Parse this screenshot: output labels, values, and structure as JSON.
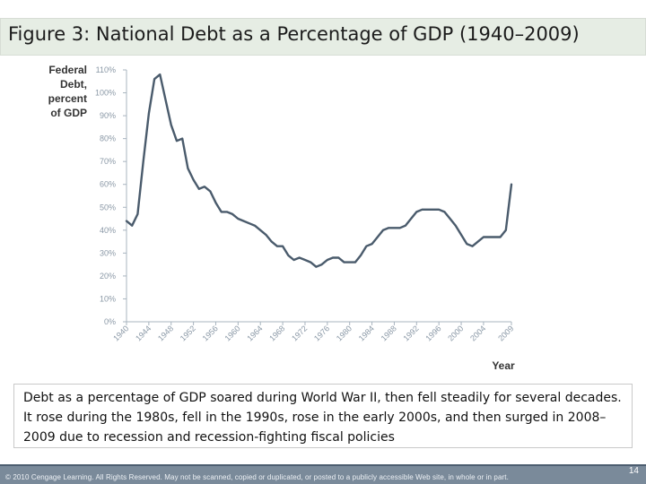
{
  "slide": {
    "title": "Figure 3: National Debt as a Percentage of GDP (1940–2009)",
    "caption": "Debt as a percentage of GDP soared during World War II, then fell steadily for several decades. It rose during the 1980s, fell in the 1990s, rose in the early 2000s, and then surged in 2008–2009 due to recession and recession-fighting fiscal policies",
    "copyright": "© 2010 Cengage Learning. All Rights Reserved. May not be scanned, copied or duplicated, or posted to a publicly accessible Web site, in whole or in part.",
    "page_number": "14"
  },
  "colors": {
    "line": "#4a5b6c",
    "axis": "#a8b4bf",
    "tick_text": "#8a98a6",
    "axis_title": "#333333",
    "footer": "#7a8a9a"
  },
  "chart_data": {
    "type": "line",
    "title": "",
    "ylabel_lines": [
      "Federal",
      "Debt,",
      "percent",
      "of GDP"
    ],
    "xlabel": "Year",
    "xlim": [
      1940,
      2009
    ],
    "ylim": [
      0,
      110
    ],
    "y_ticks": [
      0,
      10,
      20,
      30,
      40,
      50,
      60,
      70,
      80,
      90,
      100,
      110
    ],
    "y_tick_labels": [
      "0%",
      "10%",
      "20%",
      "30%",
      "40%",
      "50%",
      "60%",
      "70%",
      "80%",
      "90%",
      "100%",
      "110%"
    ],
    "x_ticks": [
      1940,
      1944,
      1948,
      1952,
      1956,
      1960,
      1964,
      1968,
      1972,
      1976,
      1980,
      1984,
      1988,
      1992,
      1996,
      2000,
      2004,
      2009
    ],
    "x_tick_labels": [
      "1940",
      "1944",
      "1948",
      "1952",
      "1956",
      "1960",
      "1964",
      "1968",
      "1972",
      "1976",
      "1980",
      "1984",
      "1988",
      "1992",
      "1996",
      "2000",
      "2004",
      "2009"
    ],
    "grid": false,
    "series": [
      {
        "name": "Federal Debt, percent of GDP",
        "x": [
          1940,
          1941,
          1942,
          1943,
          1944,
          1945,
          1946,
          1947,
          1948,
          1949,
          1950,
          1951,
          1952,
          1953,
          1954,
          1955,
          1956,
          1957,
          1958,
          1959,
          1960,
          1961,
          1962,
          1963,
          1964,
          1965,
          1966,
          1967,
          1968,
          1969,
          1970,
          1971,
          1972,
          1973,
          1974,
          1975,
          1976,
          1977,
          1978,
          1979,
          1980,
          1981,
          1982,
          1983,
          1984,
          1985,
          1986,
          1987,
          1988,
          1989,
          1990,
          1991,
          1992,
          1993,
          1994,
          1995,
          1996,
          1997,
          1998,
          1999,
          2000,
          2001,
          2002,
          2003,
          2004,
          2005,
          2006,
          2007,
          2008,
          2009
        ],
        "values": [
          44,
          42,
          47,
          70,
          91,
          106,
          108,
          97,
          86,
          79,
          80,
          67,
          62,
          58,
          59,
          57,
          52,
          48,
          48,
          47,
          45,
          44,
          43,
          42,
          40,
          38,
          35,
          33,
          33,
          29,
          27,
          28,
          27,
          26,
          24,
          25,
          27,
          28,
          28,
          26,
          26,
          26,
          29,
          33,
          34,
          37,
          40,
          41,
          41,
          41,
          42,
          45,
          48,
          49,
          49,
          49,
          49,
          48,
          45,
          42,
          38,
          34,
          33,
          35,
          37,
          37,
          37,
          37,
          40,
          60
        ]
      }
    ]
  }
}
